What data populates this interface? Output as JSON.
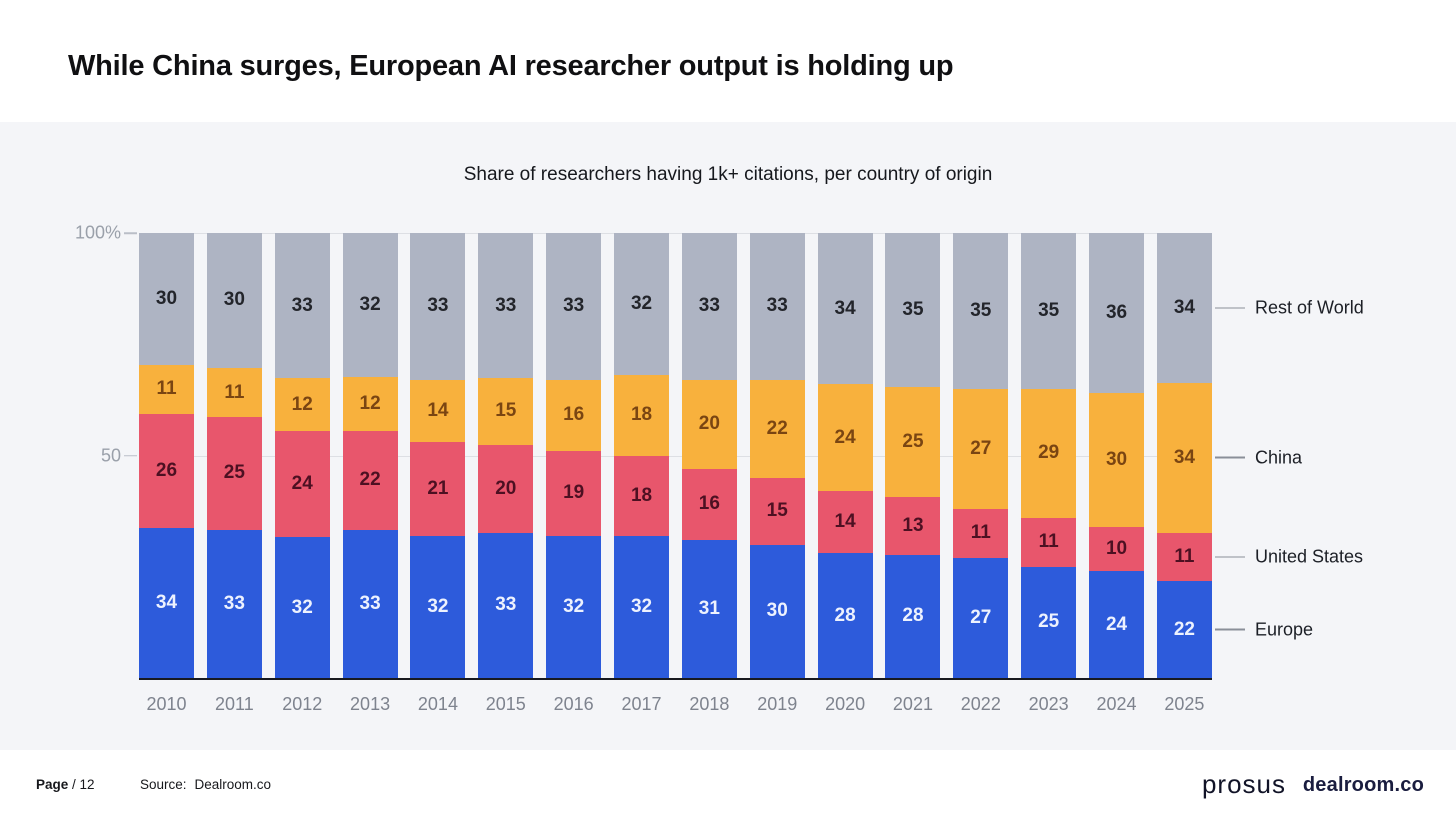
{
  "header": {
    "title": "While China surges, European AI researcher output is holding up"
  },
  "chart": {
    "subtitle": "Share of researchers having 1k+ citations, per country of origin",
    "y_axis": {
      "top_label": "100%",
      "mid_label": "50"
    }
  },
  "chart_data": {
    "type": "bar",
    "stacked": true,
    "title": "Share of researchers having 1k+ citations, per country of origin",
    "categories": [
      "2010",
      "2011",
      "2012",
      "2013",
      "2014",
      "2015",
      "2016",
      "2017",
      "2018",
      "2019",
      "2020",
      "2021",
      "2022",
      "2023",
      "2024",
      "2025"
    ],
    "series": [
      {
        "name": "Europe",
        "color": "#2d5bdb",
        "label_color": "#edf2fe",
        "values": [
          34,
          33,
          32,
          33,
          32,
          33,
          32,
          32,
          31,
          30,
          28,
          28,
          27,
          25,
          24,
          22
        ]
      },
      {
        "name": "United States",
        "color": "#e8566c",
        "label_color": "#4d1022",
        "values": [
          26,
          25,
          24,
          22,
          21,
          20,
          19,
          18,
          16,
          15,
          14,
          13,
          11,
          11,
          10,
          11
        ]
      },
      {
        "name": "China",
        "color": "#f8b13d",
        "label_color": "#7a4512",
        "values": [
          11,
          11,
          12,
          12,
          14,
          15,
          16,
          18,
          20,
          22,
          24,
          25,
          27,
          29,
          30,
          34
        ]
      },
      {
        "name": "Rest of World",
        "color": "#aeb4c3",
        "label_color": "#23252b",
        "values": [
          30,
          30,
          33,
          32,
          33,
          33,
          33,
          32,
          33,
          33,
          34,
          35,
          35,
          35,
          36,
          34
        ]
      }
    ],
    "ylabel": "",
    "xlabel": "",
    "ylim": [
      0,
      100
    ],
    "grid_levels": [
      50,
      100
    ],
    "legend_position": "right",
    "legend_order_top_to_bottom": [
      "Rest of World",
      "China",
      "United States",
      "Europe"
    ]
  },
  "footer": {
    "page_label": "Page",
    "page_value": "/ 12",
    "source_label": "Source:",
    "source_value": "Dealroom.co",
    "logo_prosus": "prosus",
    "logo_dealroom": "dealroom.co"
  }
}
